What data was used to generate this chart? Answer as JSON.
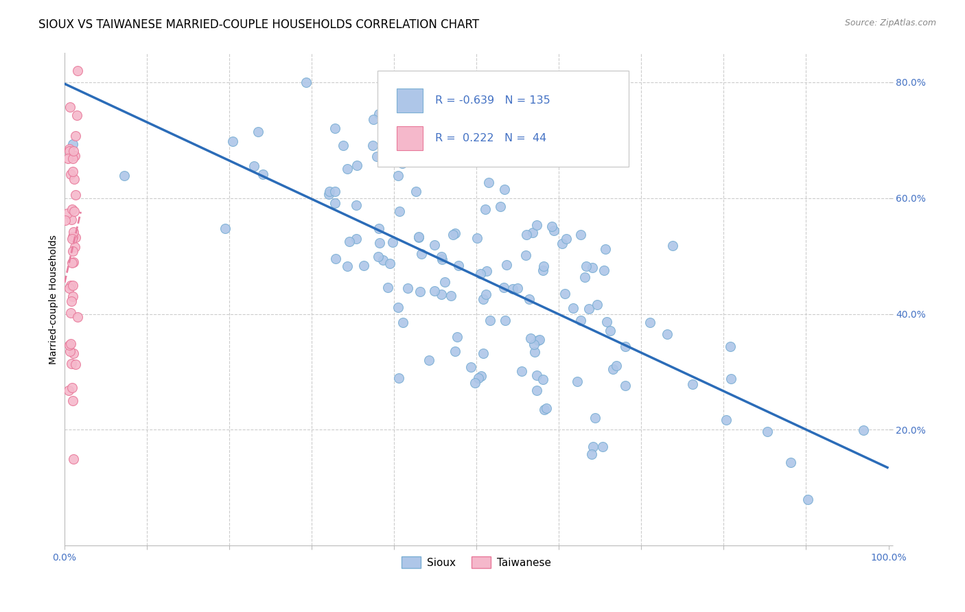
{
  "title": "SIOUX VS TAIWANESE MARRIED-COUPLE HOUSEHOLDS CORRELATION CHART",
  "source": "Source: ZipAtlas.com",
  "ylabel": "Married-couple Households",
  "xlim": [
    0.0,
    1.0
  ],
  "ylim": [
    0.0,
    0.85
  ],
  "sioux_color": "#aec6e8",
  "sioux_edge_color": "#7bafd4",
  "taiwanese_color": "#f5b8cb",
  "taiwanese_edge_color": "#e8799a",
  "trend_sioux_color": "#2b6cb8",
  "trend_taiwanese_color": "#e87fa0",
  "grid_color": "#cccccc",
  "background_color": "#ffffff",
  "tick_color": "#4472c4",
  "legend_text_color": "#4472c4",
  "sioux_R": -0.639,
  "sioux_N": 135,
  "taiwanese_R": 0.222,
  "taiwanese_N": 44
}
